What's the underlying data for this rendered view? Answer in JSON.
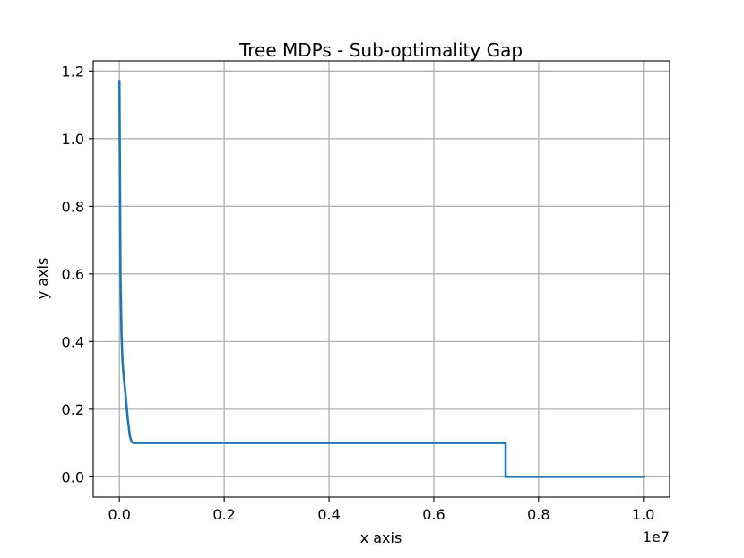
{
  "chart_data": {
    "type": "line",
    "title": "Tree MDPs - Sub-optimality Gap",
    "xlabel": "x axis",
    "ylabel": "y axis",
    "x_offset_label": "1e7",
    "xlim": [
      -0.05,
      1.05
    ],
    "ylim": [
      -0.06,
      1.23
    ],
    "x_ticks": [
      0.0,
      0.2,
      0.4,
      0.6,
      0.8,
      1.0
    ],
    "x_tick_labels": [
      "0.0",
      "0.2",
      "0.4",
      "0.6",
      "0.8",
      "1.0"
    ],
    "y_ticks": [
      0.0,
      0.2,
      0.4,
      0.6,
      0.8,
      1.0,
      1.2
    ],
    "y_tick_labels": [
      "0.0",
      "0.2",
      "0.4",
      "0.6",
      "0.8",
      "1.0",
      "1.2"
    ],
    "grid": true,
    "series": [
      {
        "color": "#1f77b4",
        "x": [
          0.0,
          0.002,
          0.004,
          0.006,
          0.008,
          0.01,
          0.013,
          0.016,
          0.02,
          0.023,
          0.026,
          0.03,
          0.035,
          0.04,
          0.05,
          0.1,
          0.2,
          0.4,
          0.6,
          0.737,
          0.737,
          0.8,
          1.0
        ],
        "y": [
          1.17,
          0.6,
          0.42,
          0.34,
          0.3,
          0.27,
          0.22,
          0.17,
          0.12,
          0.105,
          0.1,
          0.1,
          0.1,
          0.1,
          0.1,
          0.1,
          0.1,
          0.1,
          0.1,
          0.1,
          0.0,
          0.0,
          0.0
        ]
      }
    ]
  }
}
